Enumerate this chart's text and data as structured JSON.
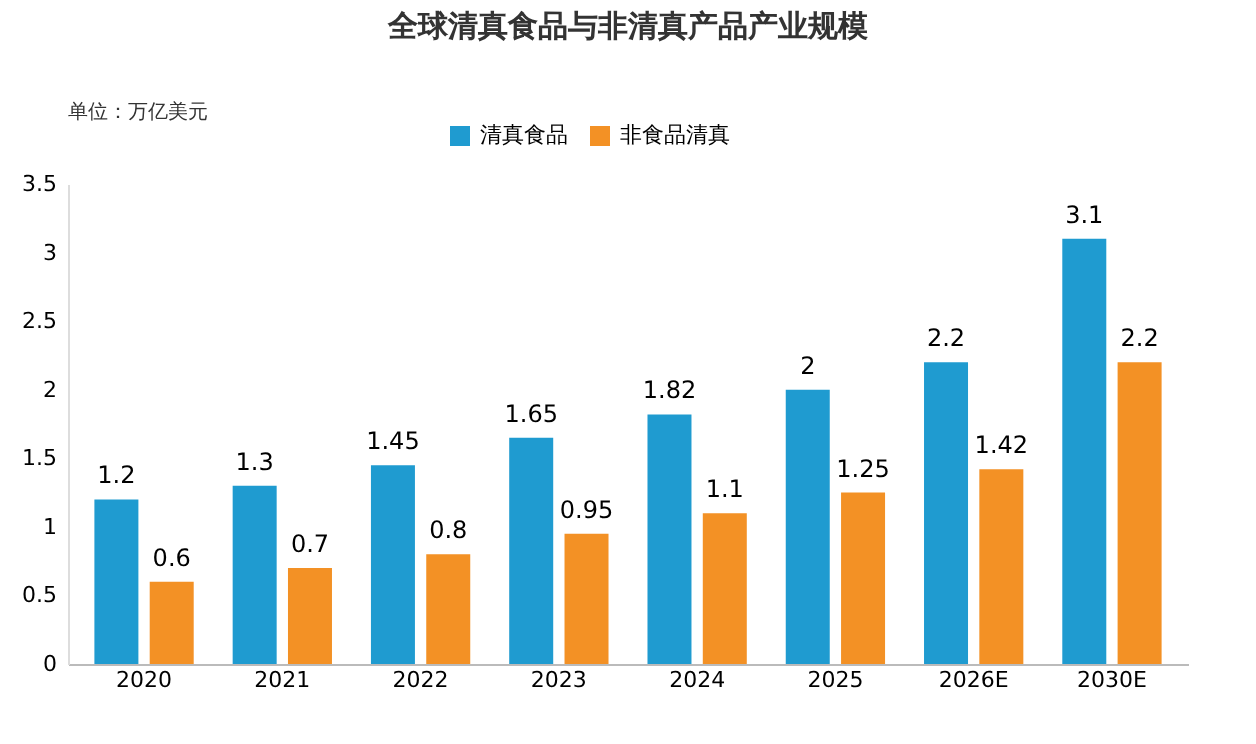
{
  "chart_data": {
    "type": "bar",
    "title": "全球清真食品与非清真产品产业规模",
    "annotations": [
      "单位：万亿美元"
    ],
    "categories": [
      "2020",
      "2021",
      "2022",
      "2023",
      "2024",
      "2025",
      "2026E",
      "2030E"
    ],
    "series": [
      {
        "name": "清真食品",
        "color": "#1f9bd0",
        "values": [
          1.2,
          1.3,
          1.45,
          1.65,
          1.82,
          2,
          2.2,
          3.1
        ]
      },
      {
        "name": "非食品清真",
        "color": "#f39125",
        "values": [
          0.6,
          0.7,
          0.8,
          0.95,
          1.1,
          1.25,
          1.42,
          2.2
        ]
      }
    ],
    "ylim": [
      0,
      3.5
    ],
    "yticks": [
      0,
      0.5,
      1,
      1.5,
      2,
      2.5,
      3,
      3.5
    ],
    "data_labels": true,
    "legend": "top",
    "grid": false
  }
}
